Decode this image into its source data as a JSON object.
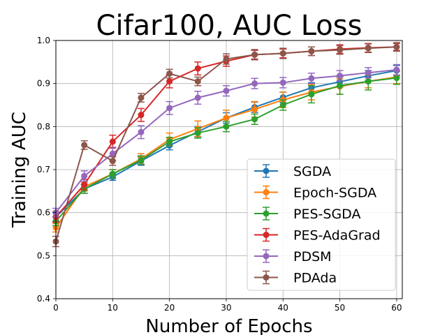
{
  "chart_data": {
    "type": "line",
    "title": "Cifar100, AUC Loss",
    "xlabel": "Number of Epochs",
    "ylabel": "Training AUC",
    "xlim": [
      0,
      61
    ],
    "ylim": [
      0.4,
      1.0
    ],
    "xticks": [
      0,
      10,
      20,
      30,
      40,
      50,
      60
    ],
    "yticks": [
      0.4,
      0.5,
      0.6,
      0.7,
      0.8,
      0.9,
      1.0
    ],
    "x": [
      0,
      5,
      10,
      15,
      20,
      25,
      30,
      35,
      40,
      45,
      50,
      55,
      60
    ],
    "grid": true,
    "error_bars": true,
    "legend_position": "lower-right",
    "series": [
      {
        "name": "SGDA",
        "color": "#1f77b4",
        "values": [
          0.59,
          0.655,
          0.683,
          0.72,
          0.756,
          0.788,
          0.82,
          0.845,
          0.868,
          0.89,
          0.904,
          0.918,
          0.93
        ],
        "errors": [
          0.01,
          0.01,
          0.008,
          0.01,
          0.01,
          0.012,
          0.012,
          0.012,
          0.012,
          0.012,
          0.012,
          0.012,
          0.012
        ]
      },
      {
        "name": "Epoch-SGDA",
        "color": "#ff7f0e",
        "values": [
          0.565,
          0.66,
          0.69,
          0.725,
          0.77,
          0.795,
          0.82,
          0.84,
          0.862,
          0.88,
          0.893,
          0.905,
          0.915
        ],
        "errors": [
          0.01,
          0.01,
          0.01,
          0.012,
          0.015,
          0.018,
          0.018,
          0.018,
          0.018,
          0.018,
          0.018,
          0.015,
          0.015
        ]
      },
      {
        "name": "PES-SGDA",
        "color": "#2ca02c",
        "values": [
          0.58,
          0.655,
          0.69,
          0.722,
          0.765,
          0.785,
          0.8,
          0.817,
          0.85,
          0.875,
          0.895,
          0.905,
          0.913
        ],
        "errors": [
          0.01,
          0.01,
          0.01,
          0.01,
          0.01,
          0.012,
          0.012,
          0.012,
          0.012,
          0.02,
          0.02,
          0.02,
          0.015
        ]
      },
      {
        "name": "PES-AdaGrad",
        "color": "#d62728",
        "values": [
          0.59,
          0.665,
          0.765,
          0.827,
          0.905,
          0.935,
          0.952,
          0.967,
          0.97,
          0.975,
          0.98,
          0.983,
          0.985
        ],
        "errors": [
          0.012,
          0.012,
          0.015,
          0.015,
          0.015,
          0.015,
          0.012,
          0.01,
          0.01,
          0.01,
          0.01,
          0.01,
          0.008
        ]
      },
      {
        "name": "PDSM",
        "color": "#9467bd",
        "values": [
          0.6,
          0.685,
          0.737,
          0.787,
          0.843,
          0.867,
          0.883,
          0.9,
          0.902,
          0.912,
          0.918,
          0.925,
          0.932
        ],
        "errors": [
          0.01,
          0.012,
          0.015,
          0.015,
          0.015,
          0.015,
          0.012,
          0.012,
          0.012,
          0.012,
          0.012,
          0.012,
          0.012
        ]
      },
      {
        "name": "PDAda",
        "color": "#8c564b",
        "values": [
          0.533,
          0.757,
          0.72,
          0.867,
          0.923,
          0.905,
          0.957,
          0.967,
          0.97,
          0.975,
          0.978,
          0.982,
          0.985
        ],
        "errors": [
          0.012,
          0.01,
          0.01,
          0.01,
          0.01,
          0.01,
          0.012,
          0.012,
          0.012,
          0.01,
          0.01,
          0.01,
          0.01
        ]
      }
    ]
  }
}
